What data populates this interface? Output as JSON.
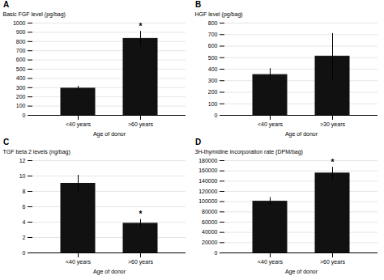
{
  "chart_data": [
    {
      "type": "bar",
      "title": "A",
      "categories": [
        "<40 years",
        ">60 years"
      ],
      "values": [
        290,
        830
      ],
      "errors": [
        25,
        80
      ],
      "xlabel": "Age of donor",
      "ylabel": "Basic FGF level (pg/bag)",
      "ylim": [
        0,
        1000
      ],
      "yticks": [
        0,
        100,
        200,
        300,
        400,
        500,
        600,
        700,
        800,
        900,
        1000
      ],
      "grid": true,
      "color": "#111111",
      "annotations": [
        {
          "x": ">60 years",
          "text": "*"
        }
      ]
    },
    {
      "type": "bar",
      "title": "B",
      "categories": [
        "<40 years",
        ">30 years"
      ],
      "values": [
        350,
        510
      ],
      "errors": [
        55,
        200
      ],
      "xlabel": "Age of donor",
      "ylabel": "HGF level (pg/bag)",
      "ylim": [
        0,
        800
      ],
      "yticks": [
        0,
        100,
        200,
        300,
        400,
        500,
        600,
        700,
        800
      ],
      "grid": true,
      "color": "#111111",
      "annotations": []
    },
    {
      "type": "bar",
      "title": "C",
      "categories": [
        "<40 years",
        ">60 years"
      ],
      "values": [
        9.0,
        3.8
      ],
      "errors": [
        1.1,
        0.55
      ],
      "xlabel": "Age of donor",
      "ylabel": "TGF beta 2 levels (ng/bag)",
      "ylim": [
        0,
        12
      ],
      "yticks": [
        0,
        2,
        4,
        6,
        8,
        10,
        12
      ],
      "grid": true,
      "color": "#111111",
      "annotations": [
        {
          "x": ">60 years",
          "text": "*"
        }
      ]
    },
    {
      "type": "bar",
      "title": "D",
      "categories": [
        "<40 years",
        ">60 years"
      ],
      "values": [
        100000,
        155000
      ],
      "errors": [
        8000,
        12000
      ],
      "xlabel": "Age of donor",
      "ylabel": "3H-thymidine incorporation rate (DPM/bag)",
      "ylim": [
        0,
        180000
      ],
      "yticks": [
        0,
        20000,
        40000,
        60000,
        80000,
        100000,
        120000,
        140000,
        160000,
        180000
      ],
      "grid": true,
      "color": "#111111",
      "annotations": [
        {
          "x": ">60 years",
          "text": "*"
        }
      ]
    }
  ]
}
